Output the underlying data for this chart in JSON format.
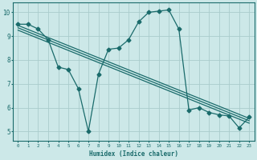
{
  "xlabel": "Humidex (Indice chaleur)",
  "ylabel": "",
  "bg_color": "#cce8e8",
  "grid_color": "#aacccc",
  "line_color": "#1a6b6b",
  "xlim": [
    -0.5,
    23.5
  ],
  "ylim": [
    4.6,
    10.4
  ],
  "xticks": [
    0,
    1,
    2,
    3,
    4,
    5,
    6,
    7,
    8,
    9,
    10,
    11,
    12,
    13,
    14,
    15,
    16,
    17,
    18,
    19,
    20,
    21,
    22,
    23
  ],
  "yticks": [
    5,
    6,
    7,
    8,
    9,
    10
  ],
  "series1_x": [
    0,
    1,
    2,
    3,
    4,
    5,
    6,
    7,
    8,
    9,
    10,
    11,
    12,
    13,
    14,
    15,
    16,
    17,
    18,
    19,
    20,
    21,
    22,
    23
  ],
  "series1_y": [
    9.5,
    9.5,
    9.3,
    8.85,
    7.7,
    7.6,
    6.8,
    5.0,
    7.4,
    8.45,
    8.5,
    8.85,
    9.6,
    10.0,
    10.05,
    10.1,
    9.3,
    5.9,
    6.0,
    5.8,
    5.7,
    5.65,
    5.15,
    5.6
  ],
  "series2_x": [
    0,
    23
  ],
  "series2_y": [
    9.45,
    5.55
  ],
  "series3_x": [
    0,
    23
  ],
  "series3_y": [
    9.35,
    5.45
  ],
  "series4_x": [
    0,
    23
  ],
  "series4_y": [
    9.25,
    5.35
  ]
}
